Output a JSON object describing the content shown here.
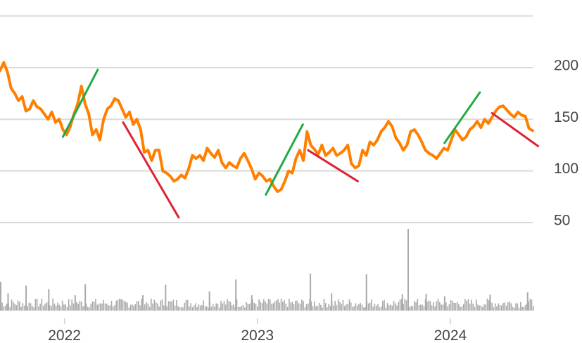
{
  "chart_data": {
    "type": "line",
    "title": "",
    "xlabel": "",
    "ylabel": "",
    "x_range": [
      "2021-09-01",
      "2024-06-05"
    ],
    "ylim": [
      50,
      250
    ],
    "y_ticks": [
      {
        "value": 50,
        "label": "50"
      },
      {
        "value": 100,
        "label": "100"
      },
      {
        "value": 150,
        "label": "150"
      },
      {
        "value": 200,
        "label": "200"
      }
    ],
    "x_ticks": [
      {
        "date": "2022-01-01",
        "label": "2022"
      },
      {
        "date": "2023-01-01",
        "label": "2023"
      },
      {
        "date": "2024-01-01",
        "label": "2024"
      }
    ],
    "grid": true,
    "legend": "none",
    "series": [
      {
        "color": "#ff8000",
        "points": [
          [
            "2021-09-01",
            197
          ],
          [
            "2021-09-08",
            205
          ],
          [
            "2021-09-15",
            196
          ],
          [
            "2021-09-22",
            180
          ],
          [
            "2021-09-29",
            175
          ],
          [
            "2021-10-06",
            168
          ],
          [
            "2021-10-13",
            172
          ],
          [
            "2021-10-20",
            158
          ],
          [
            "2021-10-27",
            160
          ],
          [
            "2021-11-03",
            168
          ],
          [
            "2021-11-10",
            162
          ],
          [
            "2021-11-17",
            160
          ],
          [
            "2021-11-24",
            155
          ],
          [
            "2021-12-01",
            150
          ],
          [
            "2021-12-08",
            157
          ],
          [
            "2021-12-15",
            147
          ],
          [
            "2021-12-22",
            150
          ],
          [
            "2021-12-29",
            140
          ],
          [
            "2022-01-05",
            135
          ],
          [
            "2022-01-12",
            143
          ],
          [
            "2022-01-19",
            155
          ],
          [
            "2022-01-26",
            165
          ],
          [
            "2022-02-02",
            182
          ],
          [
            "2022-02-09",
            165
          ],
          [
            "2022-02-16",
            155
          ],
          [
            "2022-02-23",
            135
          ],
          [
            "2022-03-02",
            140
          ],
          [
            "2022-03-09",
            130
          ],
          [
            "2022-03-16",
            150
          ],
          [
            "2022-03-23",
            160
          ],
          [
            "2022-03-30",
            163
          ],
          [
            "2022-04-06",
            170
          ],
          [
            "2022-04-13",
            168
          ],
          [
            "2022-04-20",
            160
          ],
          [
            "2022-04-27",
            152
          ],
          [
            "2022-05-04",
            157
          ],
          [
            "2022-05-11",
            145
          ],
          [
            "2022-05-18",
            150
          ],
          [
            "2022-05-25",
            140
          ],
          [
            "2022-06-01",
            118
          ],
          [
            "2022-06-08",
            120
          ],
          [
            "2022-06-15",
            110
          ],
          [
            "2022-06-22",
            120
          ],
          [
            "2022-06-29",
            120
          ],
          [
            "2022-07-06",
            100
          ],
          [
            "2022-07-13",
            98
          ],
          [
            "2022-07-20",
            95
          ],
          [
            "2022-07-27",
            90
          ],
          [
            "2022-08-03",
            92
          ],
          [
            "2022-08-10",
            96
          ],
          [
            "2022-08-17",
            93
          ],
          [
            "2022-08-24",
            102
          ],
          [
            "2022-08-31",
            115
          ],
          [
            "2022-09-07",
            112
          ],
          [
            "2022-09-14",
            115
          ],
          [
            "2022-09-21",
            110
          ],
          [
            "2022-09-28",
            122
          ],
          [
            "2022-10-05",
            117
          ],
          [
            "2022-10-12",
            113
          ],
          [
            "2022-10-19",
            120
          ],
          [
            "2022-10-26",
            108
          ],
          [
            "2022-11-02",
            103
          ],
          [
            "2022-11-09",
            108
          ],
          [
            "2022-11-16",
            105
          ],
          [
            "2022-11-23",
            103
          ],
          [
            "2022-11-30",
            112
          ],
          [
            "2022-12-07",
            117
          ],
          [
            "2022-12-14",
            110
          ],
          [
            "2022-12-21",
            102
          ],
          [
            "2022-12-28",
            92
          ],
          [
            "2023-01-04",
            98
          ],
          [
            "2023-01-11",
            95
          ],
          [
            "2023-01-18",
            90
          ],
          [
            "2023-01-25",
            92
          ],
          [
            "2023-02-01",
            85
          ],
          [
            "2023-02-08",
            80
          ],
          [
            "2023-02-15",
            82
          ],
          [
            "2023-02-22",
            90
          ],
          [
            "2023-03-01",
            100
          ],
          [
            "2023-03-08",
            98
          ],
          [
            "2023-03-15",
            112
          ],
          [
            "2023-03-22",
            120
          ],
          [
            "2023-03-29",
            110
          ],
          [
            "2023-04-05",
            138
          ],
          [
            "2023-04-12",
            125
          ],
          [
            "2023-04-19",
            121
          ],
          [
            "2023-04-26",
            116
          ],
          [
            "2023-05-03",
            125
          ],
          [
            "2023-05-10",
            115
          ],
          [
            "2023-05-17",
            118
          ],
          [
            "2023-05-24",
            122
          ],
          [
            "2023-05-31",
            115
          ],
          [
            "2023-06-07",
            117
          ],
          [
            "2023-06-14",
            120
          ],
          [
            "2023-06-21",
            125
          ],
          [
            "2023-06-28",
            107
          ],
          [
            "2023-07-05",
            103
          ],
          [
            "2023-07-12",
            105
          ],
          [
            "2023-07-19",
            120
          ],
          [
            "2023-07-26",
            115
          ],
          [
            "2023-08-02",
            128
          ],
          [
            "2023-08-09",
            125
          ],
          [
            "2023-08-16",
            130
          ],
          [
            "2023-08-23",
            138
          ],
          [
            "2023-08-30",
            142
          ],
          [
            "2023-09-06",
            148
          ],
          [
            "2023-09-13",
            143
          ],
          [
            "2023-09-20",
            132
          ],
          [
            "2023-09-27",
            127
          ],
          [
            "2023-10-04",
            120
          ],
          [
            "2023-10-11",
            125
          ],
          [
            "2023-10-18",
            138
          ],
          [
            "2023-10-25",
            140
          ],
          [
            "2023-11-01",
            135
          ],
          [
            "2023-11-08",
            128
          ],
          [
            "2023-11-15",
            120
          ],
          [
            "2023-11-22",
            117
          ],
          [
            "2023-11-29",
            115
          ],
          [
            "2023-12-06",
            112
          ],
          [
            "2023-12-13",
            117
          ],
          [
            "2023-12-20",
            122
          ],
          [
            "2023-12-27",
            120
          ],
          [
            "2024-01-03",
            130
          ],
          [
            "2024-01-10",
            140
          ],
          [
            "2024-01-17",
            135
          ],
          [
            "2024-01-24",
            130
          ],
          [
            "2024-01-31",
            133
          ],
          [
            "2024-02-07",
            140
          ],
          [
            "2024-02-14",
            143
          ],
          [
            "2024-02-21",
            148
          ],
          [
            "2024-02-28",
            142
          ],
          [
            "2024-03-06",
            150
          ],
          [
            "2024-03-13",
            146
          ],
          [
            "2024-03-20",
            152
          ],
          [
            "2024-03-27",
            158
          ],
          [
            "2024-04-03",
            162
          ],
          [
            "2024-04-10",
            163
          ],
          [
            "2024-04-17",
            159
          ],
          [
            "2024-04-24",
            155
          ],
          [
            "2024-05-01",
            152
          ],
          [
            "2024-05-08",
            157
          ],
          [
            "2024-05-15",
            154
          ],
          [
            "2024-05-22",
            153
          ],
          [
            "2024-05-29",
            141
          ],
          [
            "2024-06-05",
            139
          ]
        ]
      }
    ],
    "trend_lines": [
      {
        "color": "#22aa44",
        "from": [
          "2021-12-29",
          133
        ],
        "to": [
          "2022-03-05",
          198
        ]
      },
      {
        "color": "#dd2233",
        "from": [
          "2022-04-22",
          147
        ],
        "to": [
          "2022-08-05",
          55
        ]
      },
      {
        "color": "#22aa44",
        "from": [
          "2023-01-17",
          77
        ],
        "to": [
          "2023-03-28",
          145
        ]
      },
      {
        "color": "#dd2233",
        "from": [
          "2023-04-07",
          120
        ],
        "to": [
          "2023-07-10",
          90
        ]
      },
      {
        "color": "#22aa44",
        "from": [
          "2023-12-21",
          127
        ],
        "to": [
          "2024-02-26",
          176
        ]
      },
      {
        "color": "#dd2233",
        "from": [
          "2024-03-20",
          156
        ],
        "to": [
          "2024-06-15",
          124
        ]
      }
    ],
    "volume": {
      "color": "#aaaaaa",
      "baseline": 1200,
      "spikes": [
        [
          "2021-09-01",
          6000
        ],
        [
          "2021-09-15",
          3600
        ],
        [
          "2021-10-19",
          5200
        ],
        [
          "2021-12-01",
          4500
        ],
        [
          "2022-01-20",
          3200
        ],
        [
          "2022-02-08",
          5500
        ],
        [
          "2022-05-28",
          3200
        ],
        [
          "2022-07-10",
          5400
        ],
        [
          "2022-10-01",
          4000
        ],
        [
          "2022-11-20",
          6500
        ],
        [
          "2022-12-20",
          3200
        ],
        [
          "2023-04-10",
          7700
        ],
        [
          "2023-05-20",
          3600
        ],
        [
          "2023-07-25",
          7600
        ],
        [
          "2023-10-01",
          3400
        ],
        [
          "2023-10-12",
          17000
        ],
        [
          "2023-11-15",
          3500
        ],
        [
          "2023-12-20",
          3000
        ],
        [
          "2024-03-15",
          3300
        ],
        [
          "2024-05-25",
          3800
        ]
      ]
    }
  }
}
